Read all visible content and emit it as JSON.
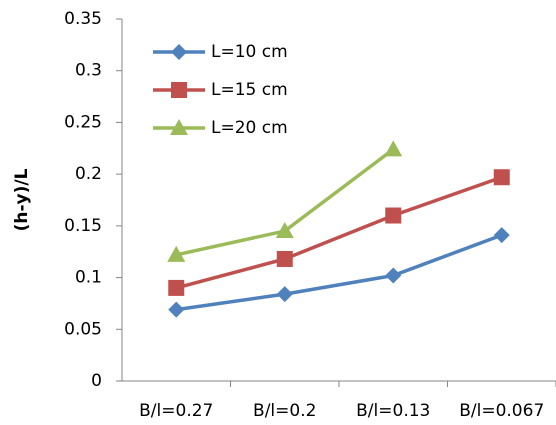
{
  "chart_data": {
    "type": "line",
    "y_label": "(h-y)/L",
    "categories": [
      "B/l=0.27",
      "B/l=0.2",
      "B/l=0.13",
      "B/l=0.067"
    ],
    "series": [
      {
        "name": "L=10 cm",
        "color": "#4f81bd",
        "marker": "diamond",
        "values": [
          0.069,
          0.084,
          0.102,
          0.141
        ]
      },
      {
        "name": "L=15 cm",
        "color": "#c0504d",
        "marker": "square",
        "values": [
          0.09,
          0.118,
          0.16,
          0.197
        ]
      },
      {
        "name": "L=20 cm",
        "color": "#9bbb59",
        "marker": "triangle",
        "values": [
          0.122,
          0.145,
          0.224,
          null
        ]
      }
    ],
    "ylim": [
      0,
      0.35
    ],
    "yticks": [
      0,
      0.05,
      0.1,
      0.15,
      0.2,
      0.25,
      0.3,
      0.35
    ],
    "grid": false,
    "legend": "upper-left"
  }
}
